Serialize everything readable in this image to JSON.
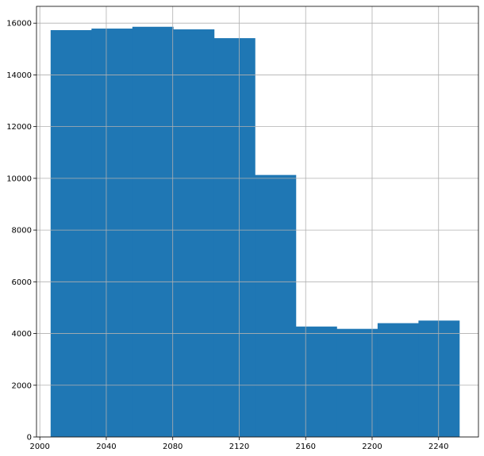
{
  "chart_data": {
    "type": "bar",
    "subtype": "histogram",
    "title": "",
    "xlabel": "",
    "ylabel": "",
    "bin_edges": [
      2006.5,
      2031.1,
      2055.7,
      2080.3,
      2104.9,
      2129.5,
      2154.1,
      2178.7,
      2203.3,
      2227.9,
      2252.5
    ],
    "values": [
      15730,
      15790,
      15860,
      15760,
      15420,
      10130,
      4270,
      4180,
      4400,
      4500
    ],
    "xlim": [
      1998,
      2264
    ],
    "ylim": [
      0,
      16650
    ],
    "x_ticks": [
      2000,
      2040,
      2080,
      2120,
      2160,
      2200,
      2240
    ],
    "y_ticks": [
      0,
      2000,
      4000,
      6000,
      8000,
      10000,
      12000,
      14000,
      16000
    ],
    "grid": true,
    "legend": "none",
    "colors": {
      "bar": "#1f77b4",
      "grid": "#b0b0b0",
      "axis": "#000000"
    }
  }
}
